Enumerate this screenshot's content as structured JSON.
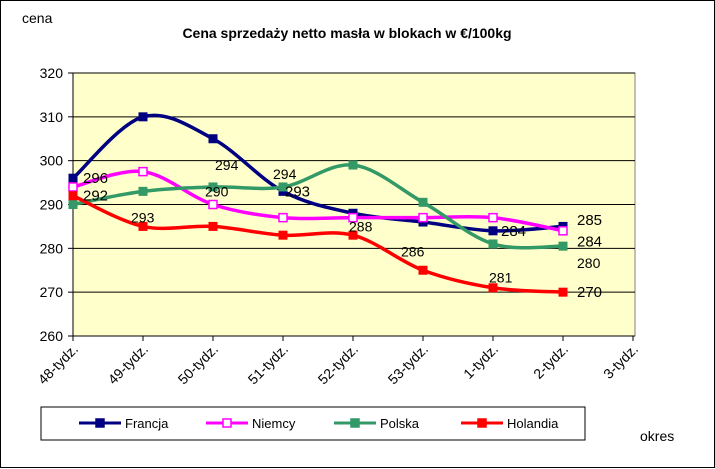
{
  "chart_data": {
    "type": "line",
    "title": "Cena sprzedaży netto masła  w blokach  w €/100kg",
    "ylabel": "cena",
    "xlabel": "okres",
    "ylim": [
      260,
      320
    ],
    "yticks": [
      260,
      270,
      280,
      290,
      300,
      310,
      320
    ],
    "categories": [
      "48-tydz.",
      "49-tydz.",
      "50-tydz.",
      "51-tydz.",
      "52-tydz.",
      "53-tydz.",
      "1-tydz.",
      "2-tydz.",
      "3-tydz."
    ],
    "grid": true,
    "legend_position": "bottom",
    "plot_background": "#ffffcc",
    "series": [
      {
        "name": "Francja",
        "color": "#000080",
        "marker": "square-filled",
        "values": [
          296,
          310,
          305,
          293,
          288,
          286,
          284,
          285,
          null
        ]
      },
      {
        "name": "Niemcy",
        "color": "#ff00ff",
        "marker": "square-open",
        "values": [
          294,
          297.5,
          290,
          287,
          287,
          287,
          287,
          284,
          null
        ]
      },
      {
        "name": "Polska",
        "color": "#339966",
        "marker": "square-filled",
        "values": [
          290,
          293,
          294,
          294,
          299,
          290.5,
          281,
          280.5,
          null
        ]
      },
      {
        "name": "Holandia",
        "color": "#ff0000",
        "marker": "square-filled",
        "values": [
          292,
          285,
          285,
          283,
          283,
          275,
          271,
          270,
          null
        ]
      }
    ],
    "data_labels": [
      {
        "text": "296",
        "x": 0,
        "y": 296,
        "size": "large"
      },
      {
        "text": "292",
        "x": 0,
        "y": 292,
        "size": "large"
      },
      {
        "text": "293",
        "x": 1,
        "y": 287,
        "size": "small"
      },
      {
        "text": "294",
        "x": 2,
        "y": 299,
        "size": "small"
      },
      {
        "text": "290",
        "x": 2,
        "y": 293,
        "size": "small"
      },
      {
        "text": "294",
        "x": 3,
        "y": 297,
        "size": "small"
      },
      {
        "text": "293",
        "x": 3,
        "y": 293,
        "size": "large"
      },
      {
        "text": "288",
        "x": 4,
        "y": 285,
        "size": "small"
      },
      {
        "text": "286",
        "x": 5,
        "y": 279.3,
        "size": "small"
      },
      {
        "text": "284",
        "x": 6,
        "y": 284,
        "size": "large"
      },
      {
        "text": "281",
        "x": 6,
        "y": 273.4,
        "size": "small"
      },
      {
        "text": "285",
        "x": 7,
        "y": 286.5,
        "size": "large"
      },
      {
        "text": "284",
        "x": 7,
        "y": 281.6,
        "size": "large"
      },
      {
        "text": "280",
        "x": 7,
        "y": 276.6,
        "size": "small"
      },
      {
        "text": "270",
        "x": 7,
        "y": 270,
        "size": "large"
      }
    ]
  }
}
